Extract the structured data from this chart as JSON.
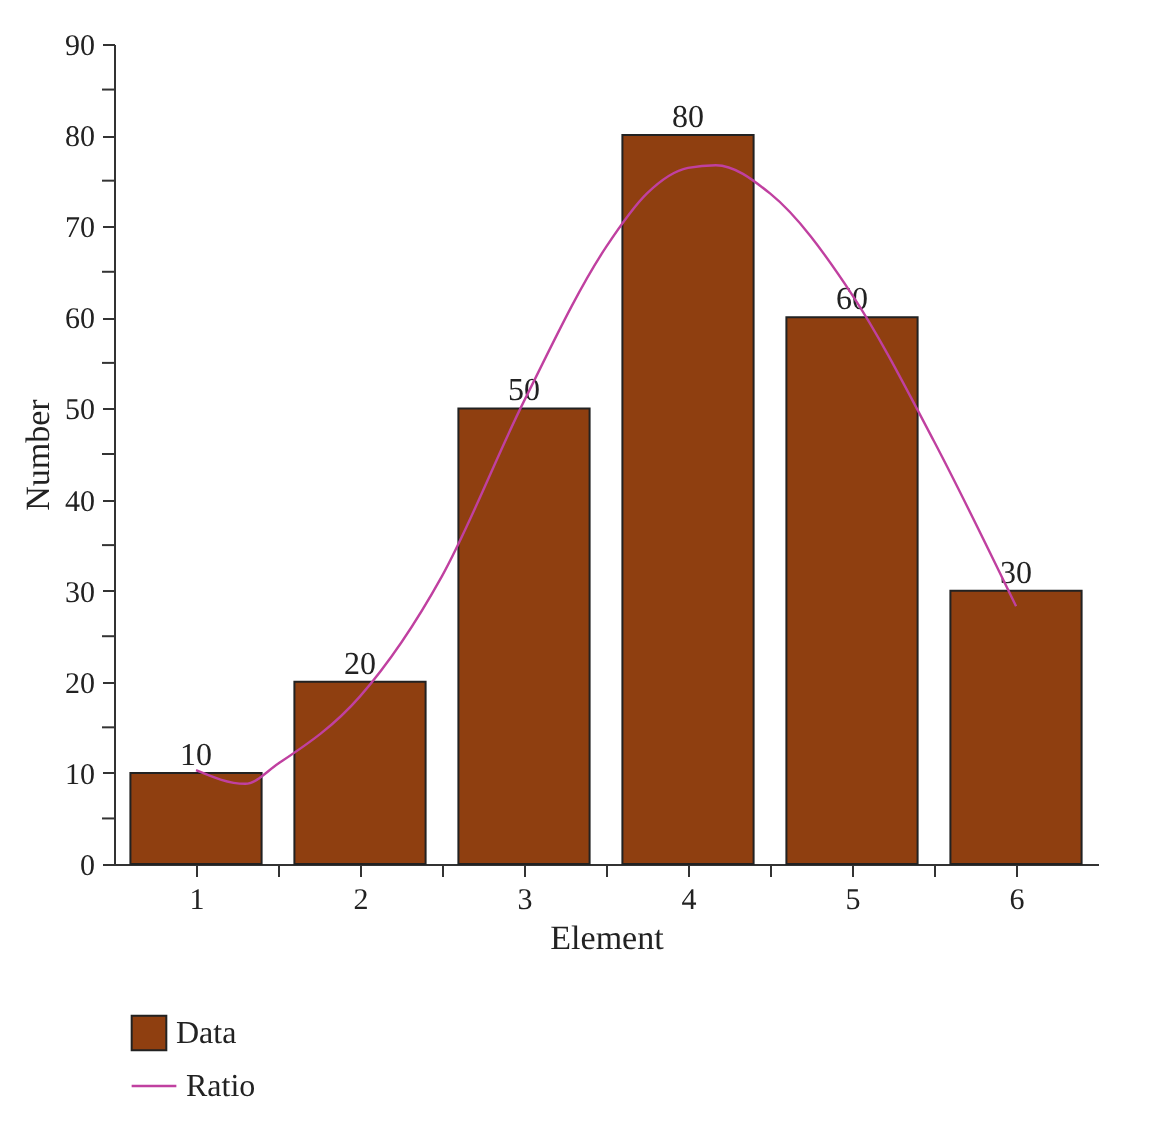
{
  "chart_data": {
    "type": "bar",
    "xlabel": "Element",
    "ylabel": "Number",
    "x": [
      1,
      2,
      3,
      4,
      5,
      6
    ],
    "series": [
      {
        "name": "Data",
        "color": "#8f3f10",
        "values": [
          10,
          20,
          50,
          80,
          60,
          30
        ],
        "value_labels": [
          "10",
          "20",
          "50",
          "80",
          "60",
          "30"
        ]
      },
      {
        "name": "Ratio",
        "type": "line",
        "color": "#c040a0",
        "x": [
          1,
          1.3,
          1.5,
          2,
          2.5,
          3,
          3.5,
          3.75,
          4,
          4.17,
          4.5,
          5,
          5.5,
          6
        ],
        "values": [
          10.3,
          8.8,
          11,
          18.4,
          31.6,
          50.8,
          67.7,
          73.6,
          76.4,
          76.7,
          73.6,
          62.5,
          46.4,
          28.3
        ]
      }
    ],
    "xlim": [
      0.5,
      6.5
    ],
    "xticks": [
      1,
      {
        "value": 1.5,
        "label": null
      },
      2,
      {
        "value": 2.5,
        "label": null
      },
      3,
      {
        "value": 3.5,
        "label": null
      },
      4,
      {
        "value": 4.5,
        "label": null
      },
      5,
      {
        "value": 5.5,
        "label": null
      },
      6
    ],
    "ylim": [
      0,
      90
    ],
    "yticks": [
      0,
      {
        "value": 5,
        "label": null
      },
      10,
      {
        "value": 15,
        "label": null
      },
      20,
      {
        "value": 25,
        "label": null
      },
      30,
      {
        "value": 35,
        "label": null
      },
      40,
      {
        "value": 45,
        "label": null
      },
      50,
      {
        "value": 55,
        "label": null
      },
      60,
      {
        "value": 65,
        "label": null
      },
      70,
      {
        "value": 75,
        "label": null
      },
      80,
      {
        "value": 85,
        "label": null
      },
      90
    ],
    "grid": false,
    "legend": "bottom left",
    "marker": "none",
    "line_style": "solid"
  }
}
